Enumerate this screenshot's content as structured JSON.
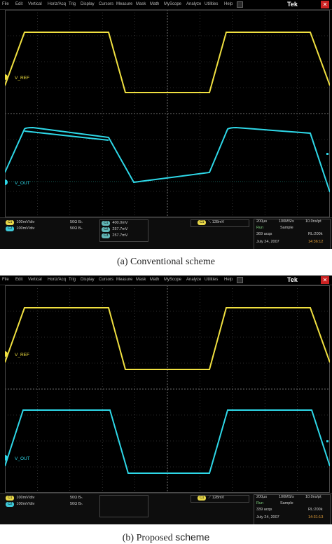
{
  "colors": {
    "ch1": "#f0e040",
    "ch2": "#2ed8e8",
    "grid": "#5a5a5a",
    "background": "#000000",
    "accent": "#e8a23a"
  },
  "menu": [
    "File",
    "Edit",
    "Vertical",
    "Horiz/Acq",
    "Trig",
    "Display",
    "Cursors",
    "Measure",
    "Mask",
    "Math",
    "MyScope",
    "Analyze",
    "Utilities",
    "Help"
  ],
  "brand": "Tek",
  "icons": {
    "close": "close-icon",
    "marker": "channel-ground-marker-icon"
  },
  "panels": [
    {
      "id": "a",
      "caption": "(a) Conventional scheme",
      "trace_labels": {
        "ch1": "V_REF",
        "ch2": "V_OUT"
      },
      "channels": [
        {
          "tag": "C1",
          "scale": "100mV/div",
          "impedance": "50Ω",
          "bw": "Bₙ"
        },
        {
          "tag": "C2",
          "scale": "100mV/div",
          "impedance": "50Ω",
          "bw": "Bₙ"
        }
      ],
      "measurements": [
        {
          "tag": "C1",
          "value": "400.0mV"
        },
        {
          "tag": "C2",
          "value": "257.7mV"
        },
        {
          "tag": "C3",
          "value": "257.7mV"
        }
      ],
      "trigger": {
        "tag": "C1",
        "value": "128mV"
      },
      "timebase": {
        "time_div": "200µs",
        "sample_rate": "100MS/s",
        "res": "10.0ns/pt",
        "run": "Run",
        "mode": "Sample",
        "acqs": "369 acqs",
        "rl": "RL:200k",
        "date": "July 24, 2007",
        "time": "14:36:12"
      }
    },
    {
      "id": "b",
      "caption_main": "(b) Proposed ",
      "caption_sans": "scheme",
      "trace_labels": {
        "ch1": "V_REF",
        "ch2": "V_OUT"
      },
      "channels": [
        {
          "tag": "C1",
          "scale": "100mV/div",
          "impedance": "50Ω",
          "bw": "Bₙ"
        },
        {
          "tag": "C2",
          "scale": "100mV/div",
          "impedance": "50Ω",
          "bw": "Bₙ"
        }
      ],
      "trigger": {
        "tag": "C1",
        "value": "128mV"
      },
      "timebase": {
        "time_div": "200µs",
        "sample_rate": "100MS/s",
        "res": "10.0ns/pt",
        "run": "Run",
        "mode": "Sample",
        "acqs": "339 acqs",
        "rl": "RL:200k",
        "date": "July 24, 2007",
        "time": "14:31:13"
      }
    }
  ]
}
